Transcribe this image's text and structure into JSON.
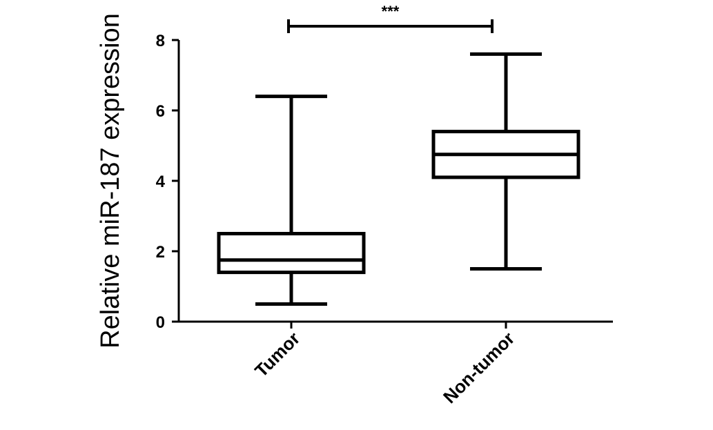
{
  "chart_data": {
    "type": "box",
    "ylabel": "Relative miR-187 expression",
    "xlabel": "",
    "ylim": [
      0,
      8
    ],
    "yticks": [
      "0",
      "2",
      "4",
      "6",
      "8"
    ],
    "categories": [
      "Tumor",
      "Non-tumor"
    ],
    "boxes": [
      {
        "category": "Tumor",
        "min": 0.5,
        "q1": 1.4,
        "median": 1.75,
        "q3": 2.5,
        "max": 6.4
      },
      {
        "category": "Non-tumor",
        "min": 1.5,
        "q1": 4.1,
        "median": 4.75,
        "q3": 5.4,
        "max": 7.6
      }
    ],
    "significance": {
      "between": [
        "Tumor",
        "Non-tumor"
      ],
      "label": "***"
    }
  }
}
